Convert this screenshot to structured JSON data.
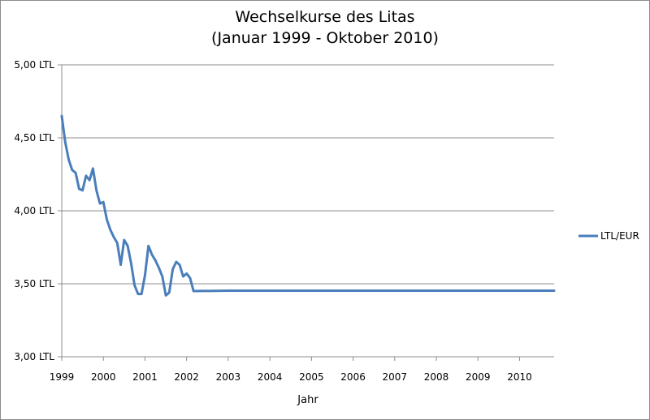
{
  "chart_data": {
    "type": "line",
    "title": "Wechselkurse des Litas",
    "subtitle": "(Januar 1999 - Oktober 2010)",
    "xlabel": "Jahr",
    "ylabel": "",
    "x_ticks": [
      "1999",
      "2000",
      "2001",
      "2002",
      "2003",
      "2004",
      "2005",
      "2006",
      "2007",
      "2008",
      "2009",
      "2010"
    ],
    "y_ticks": [
      "3,00 LTL",
      "3,50 LTL",
      "4,00 LTL",
      "4,50 LTL",
      "5,00 LTL"
    ],
    "xlim": [
      1999.0,
      2010.83
    ],
    "ylim": [
      3.0,
      5.0
    ],
    "grid": "horizontal",
    "legend_position": "right",
    "series": [
      {
        "name": "LTL/EUR",
        "color": "#4a7ebb",
        "x": [
          1999.0,
          1999.083,
          1999.167,
          1999.25,
          1999.333,
          1999.417,
          1999.5,
          1999.583,
          1999.667,
          1999.75,
          1999.833,
          1999.917,
          2000.0,
          2000.083,
          2000.167,
          2000.25,
          2000.333,
          2000.417,
          2000.5,
          2000.583,
          2000.667,
          2000.75,
          2000.833,
          2000.917,
          2001.0,
          2001.083,
          2001.167,
          2001.25,
          2001.333,
          2001.417,
          2001.5,
          2001.583,
          2001.667,
          2001.75,
          2001.833,
          2001.917,
          2002.0,
          2002.083,
          2002.167,
          2003.0,
          2004.0,
          2005.0,
          2006.0,
          2007.0,
          2008.0,
          2009.0,
          2010.0,
          2010.83
        ],
        "y": [
          4.65,
          4.47,
          4.35,
          4.28,
          4.26,
          4.15,
          4.14,
          4.24,
          4.21,
          4.29,
          4.14,
          4.05,
          4.06,
          3.94,
          3.87,
          3.82,
          3.78,
          3.63,
          3.8,
          3.76,
          3.64,
          3.49,
          3.43,
          3.43,
          3.56,
          3.76,
          3.7,
          3.66,
          3.61,
          3.55,
          3.42,
          3.44,
          3.6,
          3.65,
          3.63,
          3.55,
          3.57,
          3.54,
          3.45,
          3.4528,
          3.4528,
          3.4528,
          3.4528,
          3.4528,
          3.4528,
          3.4528,
          3.4528,
          3.4528
        ]
      }
    ]
  }
}
